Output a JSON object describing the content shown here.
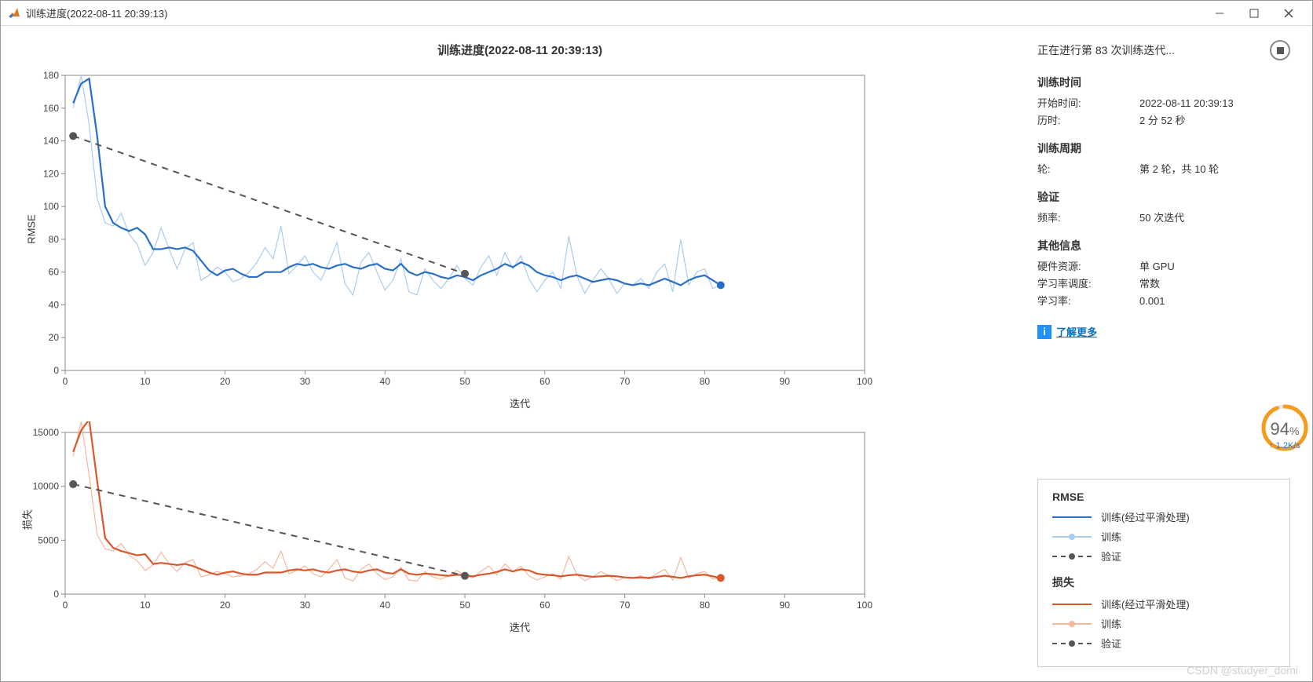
{
  "window": {
    "title": "训练进度(2022-08-11 20:39:13)"
  },
  "chart": {
    "title": "训练进度(2022-08-11 20:39:13)",
    "xlabel": "迭代",
    "xlim": [
      0,
      100
    ],
    "xtick_step": 10,
    "rmse": {
      "ylabel": "RMSE",
      "ylim": [
        0,
        180
      ],
      "ytick_step": 20,
      "smooth_color": "#2a6fc7",
      "raw_color": "#a8cdf0",
      "val_color": "#555555",
      "line_width_smooth": 2.2,
      "line_width_raw": 1.2,
      "marker_color": "#2a6fc7",
      "smooth": [
        [
          1,
          163
        ],
        [
          2,
          175
        ],
        [
          3,
          178
        ],
        [
          4,
          143
        ],
        [
          5,
          100
        ],
        [
          6,
          90
        ],
        [
          7,
          87
        ],
        [
          8,
          85
        ],
        [
          9,
          87
        ],
        [
          10,
          83
        ],
        [
          11,
          74
        ],
        [
          12,
          74
        ],
        [
          13,
          75
        ],
        [
          14,
          74
        ],
        [
          15,
          75
        ],
        [
          16,
          73
        ],
        [
          17,
          67
        ],
        [
          18,
          61
        ],
        [
          19,
          58
        ],
        [
          20,
          61
        ],
        [
          21,
          62
        ],
        [
          22,
          59
        ],
        [
          23,
          57
        ],
        [
          24,
          57
        ],
        [
          25,
          60
        ],
        [
          26,
          60
        ],
        [
          27,
          60
        ],
        [
          28,
          63
        ],
        [
          29,
          65
        ],
        [
          30,
          64
        ],
        [
          31,
          65
        ],
        [
          32,
          63
        ],
        [
          33,
          62
        ],
        [
          34,
          64
        ],
        [
          35,
          65
        ],
        [
          36,
          63
        ],
        [
          37,
          62
        ],
        [
          38,
          64
        ],
        [
          39,
          65
        ],
        [
          40,
          62
        ],
        [
          41,
          61
        ],
        [
          42,
          65
        ],
        [
          43,
          60
        ],
        [
          44,
          58
        ],
        [
          45,
          60
        ],
        [
          46,
          59
        ],
        [
          47,
          57
        ],
        [
          48,
          56
        ],
        [
          49,
          58
        ],
        [
          50,
          57
        ],
        [
          51,
          55
        ],
        [
          52,
          58
        ],
        [
          53,
          60
        ],
        [
          54,
          62
        ],
        [
          55,
          65
        ],
        [
          56,
          63
        ],
        [
          57,
          66
        ],
        [
          58,
          64
        ],
        [
          59,
          60
        ],
        [
          60,
          58
        ],
        [
          61,
          57
        ],
        [
          62,
          55
        ],
        [
          63,
          57
        ],
        [
          64,
          58
        ],
        [
          65,
          56
        ],
        [
          66,
          54
        ],
        [
          67,
          55
        ],
        [
          68,
          56
        ],
        [
          69,
          55
        ],
        [
          70,
          53
        ],
        [
          71,
          52
        ],
        [
          72,
          53
        ],
        [
          73,
          52
        ],
        [
          74,
          54
        ],
        [
          75,
          56
        ],
        [
          76,
          54
        ],
        [
          77,
          52
        ],
        [
          78,
          55
        ],
        [
          79,
          57
        ],
        [
          80,
          58
        ],
        [
          81,
          55
        ],
        [
          82,
          52
        ]
      ],
      "raw": [
        [
          1,
          160
        ],
        [
          2,
          180
        ],
        [
          3,
          150
        ],
        [
          4,
          105
        ],
        [
          5,
          90
        ],
        [
          6,
          88
        ],
        [
          7,
          96
        ],
        [
          8,
          83
        ],
        [
          9,
          77
        ],
        [
          10,
          64
        ],
        [
          11,
          72
        ],
        [
          12,
          87
        ],
        [
          13,
          74
        ],
        [
          14,
          62
        ],
        [
          15,
          74
        ],
        [
          16,
          78
        ],
        [
          17,
          55
        ],
        [
          18,
          58
        ],
        [
          19,
          63
        ],
        [
          20,
          60
        ],
        [
          21,
          54
        ],
        [
          22,
          56
        ],
        [
          23,
          60
        ],
        [
          24,
          66
        ],
        [
          25,
          75
        ],
        [
          26,
          68
        ],
        [
          27,
          88
        ],
        [
          28,
          59
        ],
        [
          29,
          64
        ],
        [
          30,
          70
        ],
        [
          31,
          60
        ],
        [
          32,
          55
        ],
        [
          33,
          66
        ],
        [
          34,
          78
        ],
        [
          35,
          53
        ],
        [
          36,
          46
        ],
        [
          37,
          66
        ],
        [
          38,
          72
        ],
        [
          39,
          60
        ],
        [
          40,
          49
        ],
        [
          41,
          55
        ],
        [
          42,
          68
        ],
        [
          43,
          48
        ],
        [
          44,
          46
        ],
        [
          45,
          62
        ],
        [
          46,
          55
        ],
        [
          47,
          50
        ],
        [
          48,
          56
        ],
        [
          49,
          64
        ],
        [
          50,
          56
        ],
        [
          51,
          52
        ],
        [
          52,
          63
        ],
        [
          53,
          70
        ],
        [
          54,
          58
        ],
        [
          55,
          72
        ],
        [
          56,
          62
        ],
        [
          57,
          70
        ],
        [
          58,
          56
        ],
        [
          59,
          48
        ],
        [
          60,
          55
        ],
        [
          61,
          60
        ],
        [
          62,
          50
        ],
        [
          63,
          82
        ],
        [
          64,
          58
        ],
        [
          65,
          47
        ],
        [
          66,
          55
        ],
        [
          67,
          62
        ],
        [
          68,
          56
        ],
        [
          69,
          47
        ],
        [
          70,
          53
        ],
        [
          71,
          52
        ],
        [
          72,
          56
        ],
        [
          73,
          50
        ],
        [
          74,
          60
        ],
        [
          75,
          65
        ],
        [
          76,
          48
        ],
        [
          77,
          80
        ],
        [
          78,
          52
        ],
        [
          79,
          60
        ],
        [
          80,
          62
        ],
        [
          81,
          50
        ],
        [
          82,
          52
        ]
      ],
      "validation": [
        [
          1,
          143
        ],
        [
          50,
          59
        ]
      ],
      "end_marker": [
        82,
        52
      ]
    },
    "loss": {
      "ylabel": "损失",
      "ylim": [
        0,
        15000
      ],
      "ytick_step": 5000,
      "smooth_color": "#d9572b",
      "raw_color": "#f5b79e",
      "val_color": "#555555",
      "line_width_smooth": 2.2,
      "line_width_raw": 1.2,
      "smooth": [
        [
          1,
          13200
        ],
        [
          2,
          15200
        ],
        [
          3,
          16200
        ],
        [
          4,
          10500
        ],
        [
          5,
          5200
        ],
        [
          6,
          4300
        ],
        [
          7,
          4000
        ],
        [
          8,
          3800
        ],
        [
          9,
          3600
        ],
        [
          10,
          3700
        ],
        [
          11,
          2800
        ],
        [
          12,
          2900
        ],
        [
          13,
          2800
        ],
        [
          14,
          2700
        ],
        [
          15,
          2800
        ],
        [
          16,
          2600
        ],
        [
          17,
          2300
        ],
        [
          18,
          2000
        ],
        [
          19,
          1800
        ],
        [
          20,
          2000
        ],
        [
          21,
          2100
        ],
        [
          22,
          1900
        ],
        [
          23,
          1800
        ],
        [
          24,
          1800
        ],
        [
          25,
          2000
        ],
        [
          26,
          2000
        ],
        [
          27,
          2000
        ],
        [
          28,
          2200
        ],
        [
          29,
          2300
        ],
        [
          30,
          2200
        ],
        [
          31,
          2300
        ],
        [
          32,
          2100
        ],
        [
          33,
          2000
        ],
        [
          34,
          2200
        ],
        [
          35,
          2300
        ],
        [
          36,
          2100
        ],
        [
          37,
          2000
        ],
        [
          38,
          2200
        ],
        [
          39,
          2300
        ],
        [
          40,
          2000
        ],
        [
          41,
          1900
        ],
        [
          42,
          2300
        ],
        [
          43,
          1900
        ],
        [
          44,
          1800
        ],
        [
          45,
          1900
        ],
        [
          46,
          1850
        ],
        [
          47,
          1750
        ],
        [
          48,
          1700
        ],
        [
          49,
          1800
        ],
        [
          50,
          1750
        ],
        [
          51,
          1650
        ],
        [
          52,
          1800
        ],
        [
          53,
          1900
        ],
        [
          54,
          2050
        ],
        [
          55,
          2300
        ],
        [
          56,
          2100
        ],
        [
          57,
          2300
        ],
        [
          58,
          2200
        ],
        [
          59,
          1900
        ],
        [
          60,
          1800
        ],
        [
          61,
          1750
        ],
        [
          62,
          1650
        ],
        [
          63,
          1750
        ],
        [
          64,
          1800
        ],
        [
          65,
          1700
        ],
        [
          66,
          1600
        ],
        [
          67,
          1650
        ],
        [
          68,
          1700
        ],
        [
          69,
          1650
        ],
        [
          70,
          1550
        ],
        [
          71,
          1500
        ],
        [
          72,
          1550
        ],
        [
          73,
          1500
        ],
        [
          74,
          1600
        ],
        [
          75,
          1700
        ],
        [
          76,
          1600
        ],
        [
          77,
          1500
        ],
        [
          78,
          1650
        ],
        [
          79,
          1750
        ],
        [
          80,
          1800
        ],
        [
          81,
          1650
        ],
        [
          82,
          1500
        ]
      ],
      "raw": [
        [
          1,
          12800
        ],
        [
          2,
          16000
        ],
        [
          3,
          11000
        ],
        [
          4,
          5500
        ],
        [
          5,
          4200
        ],
        [
          6,
          4000
        ],
        [
          7,
          4700
        ],
        [
          8,
          3600
        ],
        [
          9,
          3100
        ],
        [
          10,
          2200
        ],
        [
          11,
          2700
        ],
        [
          12,
          3900
        ],
        [
          13,
          2800
        ],
        [
          14,
          2100
        ],
        [
          15,
          2900
        ],
        [
          16,
          3200
        ],
        [
          17,
          1600
        ],
        [
          18,
          1800
        ],
        [
          19,
          2100
        ],
        [
          20,
          1900
        ],
        [
          21,
          1600
        ],
        [
          22,
          1700
        ],
        [
          23,
          1900
        ],
        [
          24,
          2300
        ],
        [
          25,
          3000
        ],
        [
          26,
          2400
        ],
        [
          27,
          4000
        ],
        [
          28,
          1900
        ],
        [
          29,
          2200
        ],
        [
          30,
          2600
        ],
        [
          31,
          1900
        ],
        [
          32,
          1600
        ],
        [
          33,
          2300
        ],
        [
          34,
          3200
        ],
        [
          35,
          1500
        ],
        [
          36,
          1200
        ],
        [
          37,
          2300
        ],
        [
          38,
          2800
        ],
        [
          39,
          1900
        ],
        [
          40,
          1350
        ],
        [
          41,
          1600
        ],
        [
          42,
          2500
        ],
        [
          43,
          1300
        ],
        [
          44,
          1200
        ],
        [
          45,
          2100
        ],
        [
          46,
          1600
        ],
        [
          47,
          1400
        ],
        [
          48,
          1700
        ],
        [
          49,
          2200
        ],
        [
          50,
          1700
        ],
        [
          51,
          1500
        ],
        [
          52,
          2100
        ],
        [
          53,
          2600
        ],
        [
          54,
          1800
        ],
        [
          55,
          2800
        ],
        [
          56,
          2100
        ],
        [
          57,
          2600
        ],
        [
          58,
          1700
        ],
        [
          59,
          1300
        ],
        [
          60,
          1600
        ],
        [
          61,
          1900
        ],
        [
          62,
          1400
        ],
        [
          63,
          3500
        ],
        [
          64,
          1800
        ],
        [
          65,
          1250
        ],
        [
          66,
          1600
        ],
        [
          67,
          2100
        ],
        [
          68,
          1700
        ],
        [
          69,
          1250
        ],
        [
          70,
          1550
        ],
        [
          71,
          1500
        ],
        [
          72,
          1700
        ],
        [
          73,
          1400
        ],
        [
          74,
          1900
        ],
        [
          75,
          2300
        ],
        [
          76,
          1300
        ],
        [
          77,
          3400
        ],
        [
          78,
          1500
        ],
        [
          79,
          1900
        ],
        [
          80,
          2100
        ],
        [
          81,
          1400
        ],
        [
          82,
          1500
        ]
      ],
      "validation": [
        [
          1,
          10200
        ],
        [
          50,
          1700
        ]
      ],
      "end_marker": [
        82,
        1500
      ]
    }
  },
  "status": "正在进行第 83 次训练迭代...",
  "info": {
    "time_header": "训练时间",
    "start_label": "开始时间:",
    "start_value": "2022-08-11 20:39:13",
    "elapsed_label": "历时:",
    "elapsed_value": "2 分 52 秒",
    "cycle_header": "训练周期",
    "epoch_label": "轮:",
    "epoch_value": "第 2 轮，共 10 轮",
    "val_header": "验证",
    "freq_label": "频率:",
    "freq_value": "50 次迭代",
    "other_header": "其他信息",
    "hw_label": "硬件资源:",
    "hw_value": "单 GPU",
    "lrs_label": "学习率调度:",
    "lrs_value": "常数",
    "lr_label": "学习率:",
    "lr_value": "0.001",
    "learn_more": "了解更多"
  },
  "gauge": {
    "percent": "94",
    "rate": "↑ 1.2K/s",
    "ring_color": "#f59b1d",
    "ring_bg": "#e6e6e6"
  },
  "legend": {
    "rmse_title": "RMSE",
    "loss_title": "损失",
    "smooth_label": "训练(经过平滑处理)",
    "raw_label": "训练",
    "val_label": "验证",
    "rmse_smooth_color": "#2a6fc7",
    "rmse_raw_color": "#a8cdf0",
    "loss_smooth_color": "#d9572b",
    "loss_raw_color": "#f5b79e",
    "val_color": "#555555"
  },
  "watermark": "CSDN @studyer_domi"
}
